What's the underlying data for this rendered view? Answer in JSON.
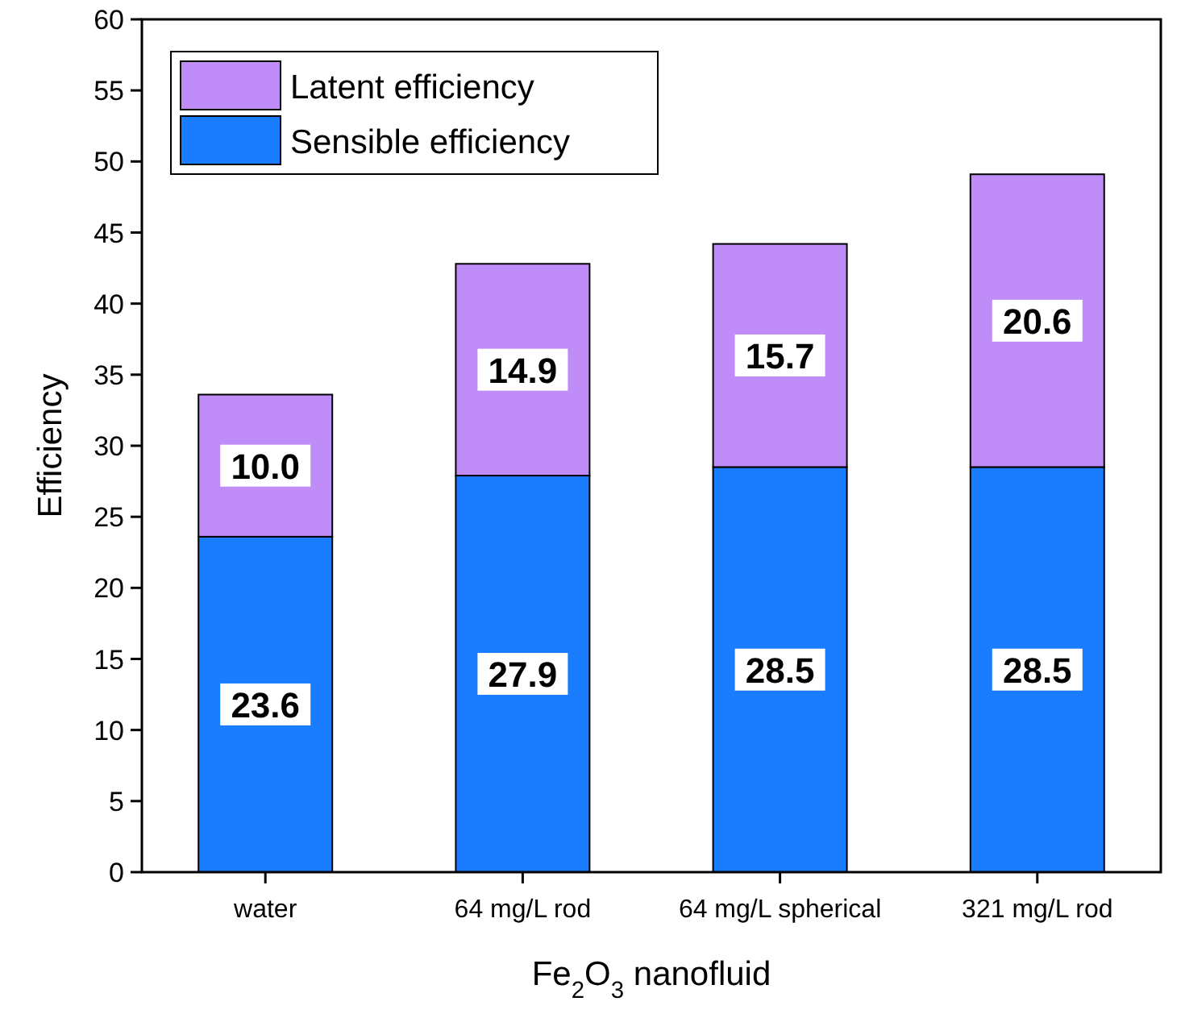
{
  "chart_data": {
    "type": "bar",
    "stacked": true,
    "xlabel": "Fe$_{2}$O$_{3}$ nanofluid",
    "ylabel": "Efficiency",
    "categories": [
      "water",
      "64 mg/L rod",
      "64 mg/L spherical",
      "321 mg/L rod"
    ],
    "series": [
      {
        "name": "Sensible efficiency",
        "color": "#1a7cff",
        "values": [
          23.6,
          27.9,
          28.5,
          28.5
        ],
        "value_labels": [
          "23.6",
          "27.9",
          "28.5",
          "28.5"
        ]
      },
      {
        "name": "Latent efficiency",
        "color": "#c08cf8",
        "values": [
          10.0,
          14.9,
          15.7,
          20.6
        ],
        "value_labels": [
          "10.0",
          "14.9",
          "15.7",
          "20.6"
        ]
      }
    ],
    "ylim": [
      0,
      60
    ],
    "yticks": [
      0,
      5,
      10,
      15,
      20,
      25,
      30,
      35,
      40,
      45,
      50,
      55,
      60
    ],
    "legend": "top left",
    "grid": false
  }
}
